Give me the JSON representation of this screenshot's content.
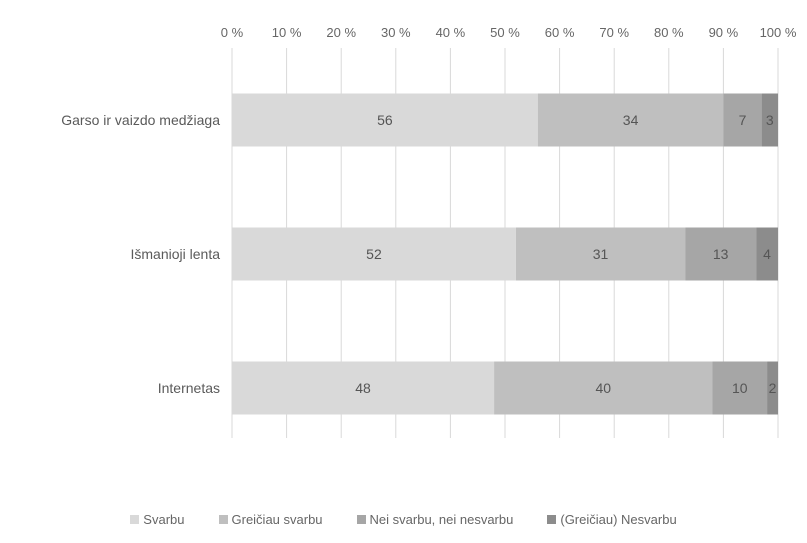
{
  "chart_data": {
    "type": "bar",
    "orientation": "horizontal",
    "stacked": true,
    "percent": true,
    "categories": [
      "Garso ir vaizdo medžiaga",
      "Išmanioji lenta",
      "Internetas"
    ],
    "series": [
      {
        "name": "Svarbu",
        "values": [
          56,
          52,
          48
        ],
        "color": "#d9d9d9"
      },
      {
        "name": "Greičiau svarbu",
        "values": [
          34,
          31,
          40
        ],
        "color": "#bfbfbf"
      },
      {
        "name": "Nei svarbu, nei nesvarbu",
        "values": [
          7,
          13,
          10
        ],
        "color": "#a6a6a6"
      },
      {
        "name": "(Greičiau) Nesvarbu",
        "values": [
          3,
          4,
          2
        ],
        "color": "#8c8c8c"
      }
    ],
    "xlim": [
      0,
      100
    ],
    "x_ticks": [
      "0 %",
      "10 %",
      "20 %",
      "30 %",
      "40 %",
      "50 %",
      "60 %",
      "70 %",
      "80 %",
      "90 %",
      "100 %"
    ],
    "xaxis_position": "top",
    "grid": true,
    "legend_position": "bottom"
  }
}
